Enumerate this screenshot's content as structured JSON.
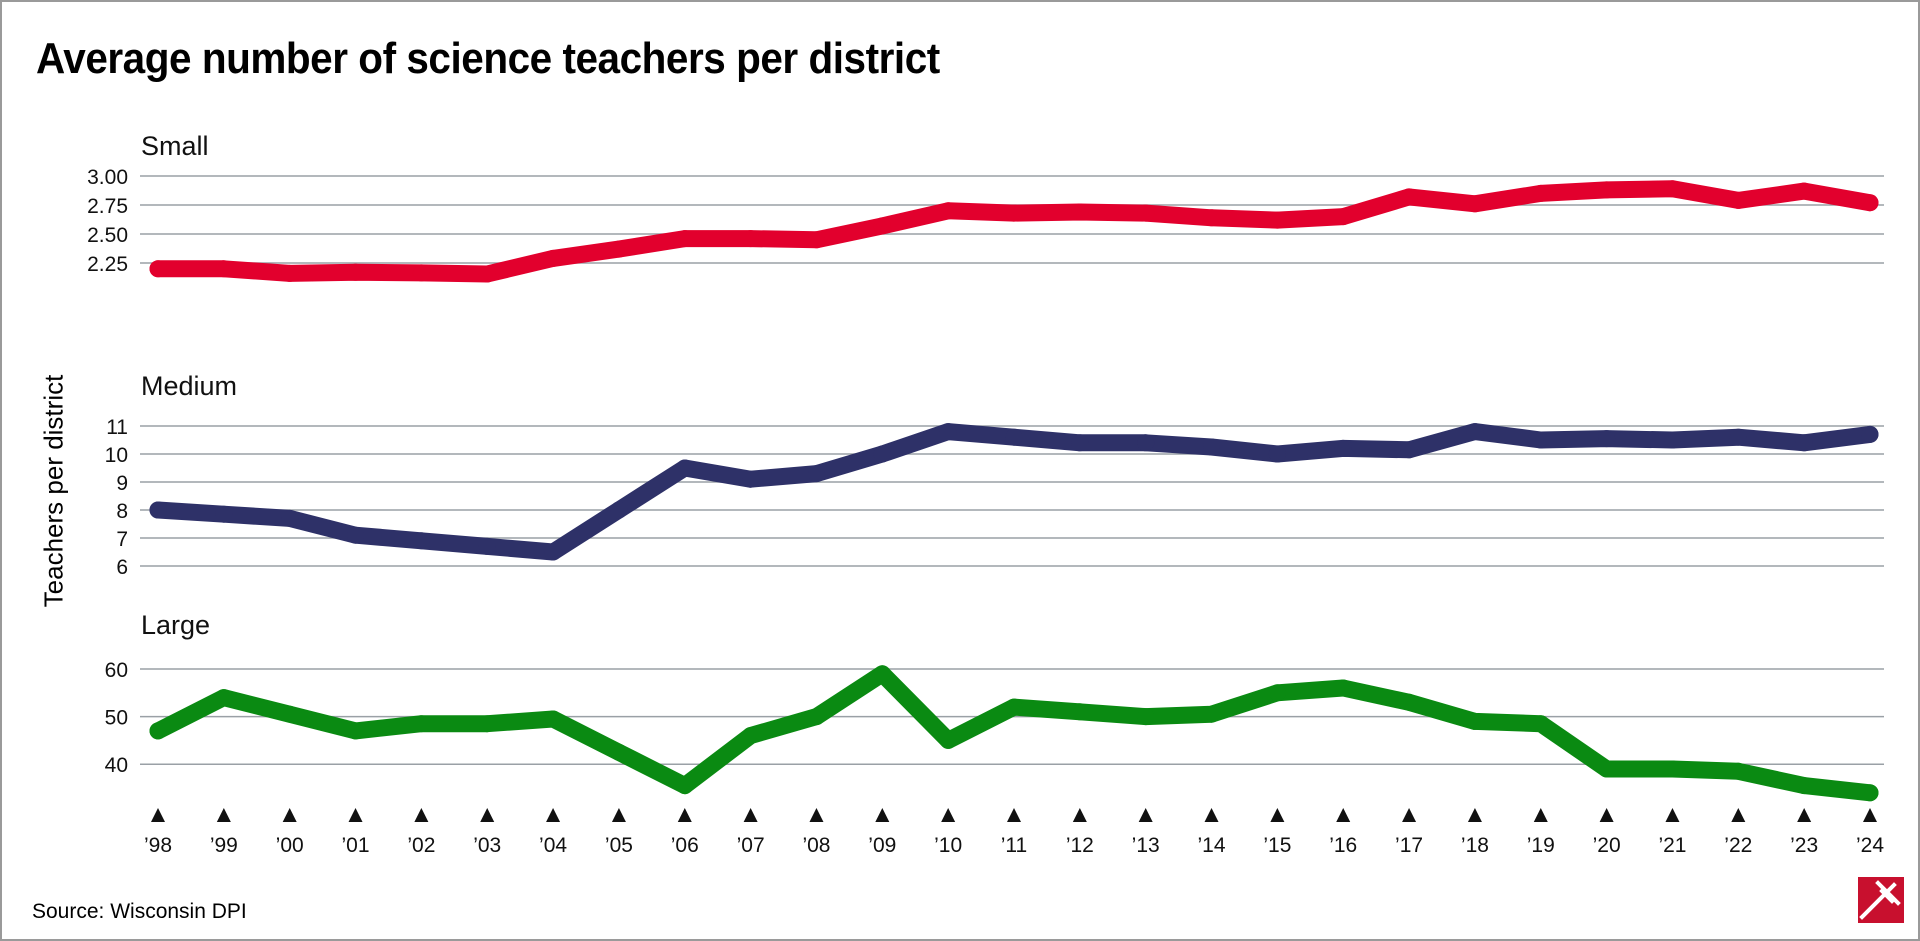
{
  "title": "Average number of science teachers per district",
  "ylabel": "Teachers per district",
  "source": "Source: Wisconsin DPI",
  "chart_data": {
    "type": "line",
    "title": "Average number of science teachers per district",
    "ylabel": "Teachers per district",
    "x": [
      "’98",
      "’99",
      "’00",
      "’01",
      "’02",
      "’03",
      "’04",
      "’05",
      "’06",
      "’07",
      "’08",
      "’09",
      "’10",
      "’11",
      "’12",
      "’13",
      "’14",
      "’15",
      "’16",
      "’17",
      "’18",
      "’19",
      "’20",
      "’21",
      "’22",
      "’23",
      "’24"
    ],
    "grid": true,
    "panels": [
      {
        "name": "Small",
        "color": "#e2002d",
        "ylim": [
          2.0,
          3.0
        ],
        "yticks": [
          3.0,
          2.75,
          2.5,
          2.25
        ],
        "ytick_labels": [
          "3.00",
          "2.75",
          "2.50",
          "2.25"
        ],
        "values": [
          2.2,
          2.2,
          2.16,
          2.17,
          2.165,
          2.155,
          2.29,
          2.37,
          2.46,
          2.46,
          2.45,
          2.57,
          2.7,
          2.68,
          2.69,
          2.68,
          2.64,
          2.62,
          2.65,
          2.82,
          2.76,
          2.85,
          2.88,
          2.89,
          2.79,
          2.87,
          2.77
        ]
      },
      {
        "name": "Medium",
        "color": "#2e3168",
        "ylim": [
          6,
          11
        ],
        "yticks": [
          11,
          10,
          9,
          8,
          7,
          6
        ],
        "ytick_labels": [
          "11",
          "10",
          "9",
          "8",
          "7",
          "6"
        ],
        "values": [
          8.0,
          7.85,
          7.7,
          7.1,
          6.9,
          6.7,
          6.5,
          8.0,
          9.5,
          9.1,
          9.3,
          10.0,
          10.8,
          10.6,
          10.4,
          10.4,
          10.25,
          10.0,
          10.2,
          10.15,
          10.8,
          10.5,
          10.55,
          10.5,
          10.6,
          10.4,
          10.7
        ]
      },
      {
        "name": "Large",
        "color": "#0a8a12",
        "ylim": [
          35,
          60
        ],
        "yticks": [
          60,
          50,
          40
        ],
        "ytick_labels": [
          "60",
          "50",
          "40"
        ],
        "values": [
          47,
          54,
          50.5,
          47,
          48.5,
          48.5,
          49.5,
          42.5,
          35.5,
          46,
          50,
          59,
          45,
          52,
          51,
          50,
          50.5,
          55,
          56,
          53,
          49,
          48.5,
          39,
          39,
          38.5,
          35.5,
          34
        ]
      }
    ]
  }
}
